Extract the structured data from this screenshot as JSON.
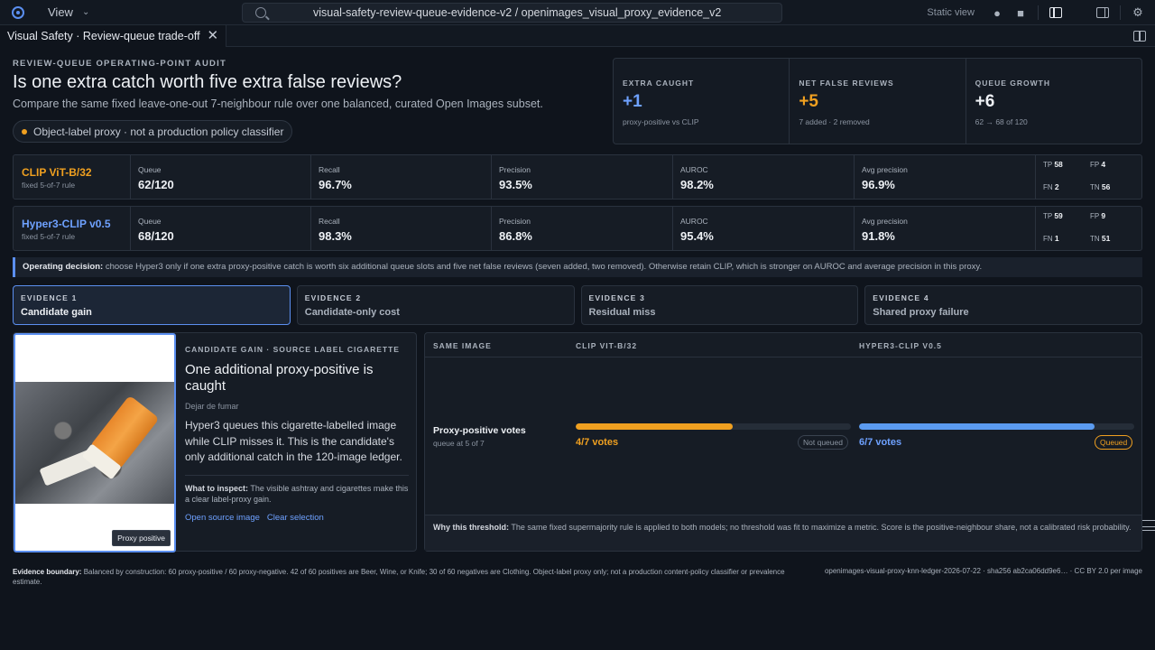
{
  "topbar": {
    "view_label": "View",
    "search_path": "visual-safety-review-queue-evidence-v2 / openimages_visual_proxy_evidence_v2",
    "static_view": "Static view"
  },
  "tab": {
    "title": "Visual Safety · Review-queue trade-off"
  },
  "header": {
    "eyebrow": "REVIEW-QUEUE OPERATING-POINT AUDIT",
    "title": "Is one extra catch worth five extra false reviews?",
    "subtitle": "Compare the same fixed leave-one-out 7-neighbour rule over one balanced, curated Open Images subset.",
    "pill": "Object-label proxy · not a production policy classifier"
  },
  "kpis": [
    {
      "label": "EXTRA CAUGHT",
      "value": "+1",
      "note": "proxy-positive vs CLIP",
      "color": "#6ea1ff"
    },
    {
      "label": "NET FALSE REVIEWS",
      "value": "+5",
      "note": "7 added · 2 removed",
      "color": "#f0a020"
    },
    {
      "label": "QUEUE GROWTH",
      "value": "+6",
      "note": "62 → 68 of 120",
      "color": "#eef1f5"
    }
  ],
  "models": [
    {
      "name": "CLIP ViT-B/32",
      "rule": "fixed 5-of-7 rule",
      "color": "#f0a020",
      "queue_label": "Queue",
      "queue": "62/120",
      "recall_label": "Recall",
      "recall": "96.7%",
      "precision_label": "Precision",
      "precision": "93.5%",
      "auroc_label": "AUROC",
      "auroc": "98.2%",
      "ap_label": "Avg precision",
      "ap": "96.9%",
      "tp": "58",
      "fp": "4",
      "fn": "2",
      "tn": "56"
    },
    {
      "name": "Hyper3-CLIP v0.5",
      "rule": "fixed 5-of-7 rule",
      "color": "#6ea1ff",
      "queue_label": "Queue",
      "queue": "68/120",
      "recall_label": "Recall",
      "recall": "98.3%",
      "precision_label": "Precision",
      "precision": "86.8%",
      "auroc_label": "AUROC",
      "auroc": "95.4%",
      "ap_label": "Avg precision",
      "ap": "91.8%",
      "tp": "59",
      "fp": "9",
      "fn": "1",
      "tn": "51"
    }
  ],
  "cm_labels": {
    "tp": "TP",
    "fp": "FP",
    "fn": "FN",
    "tn": "TN"
  },
  "decision": {
    "label": "Operating decision:",
    "text": " choose Hyper3 only if one extra proxy-positive catch is worth six additional queue slots and five net false reviews (seven added, two removed). Otherwise retain CLIP, which is stronger on AUROC and average precision in this proxy."
  },
  "evidence_tabs": [
    {
      "num": "EVIDENCE 1",
      "title": "Candidate gain"
    },
    {
      "num": "EVIDENCE 2",
      "title": "Candidate-only cost"
    },
    {
      "num": "EVIDENCE 3",
      "title": "Residual miss"
    },
    {
      "num": "EVIDENCE 4",
      "title": "Shared proxy failure"
    }
  ],
  "card": {
    "badge": "Proxy positive",
    "caption": "CANDIDATE GAIN · SOURCE LABEL CIGARETTE",
    "title": "One additional proxy-positive is caught",
    "original_title": "Dejar de fumar",
    "desc": "Hyper3 queues this cigarette-labelled image while CLIP misses it. This is the candidate's only additional catch in the 120-image ledger.",
    "inspect_label": "What to inspect:",
    "inspect_text": " The visible ashtray and cigarettes make this a clear label-proxy gain.",
    "link_open": "Open source image",
    "link_clear": "Clear selection"
  },
  "compare": {
    "h_same": "SAME IMAGE",
    "h_clip": "CLIP VIT-B/32",
    "h_hyper": "HYPER3-CLIP V0.5",
    "row_title": "Proxy-positive votes",
    "row_sub": "queue at 5 of 7",
    "clip_votes": "4/7 votes",
    "clip_fraction": 0.571,
    "clip_status": "Not queued",
    "hyper_votes": "6/7 votes",
    "hyper_fraction": 0.857,
    "hyper_status": "Queued",
    "foot_label": "Why this threshold:",
    "foot_text": " The same fixed supermajority rule is applied to both models; no threshold was fit to maximize a metric. Score is the positive-neighbour share, not a calibrated risk probability."
  },
  "footer": {
    "label": "Evidence boundary:",
    "text": " Balanced by construction: 60 proxy-positive / 60 proxy-negative. 42 of 60 positives are Beer, Wine, or Knife; 30 of 60 negatives are Clothing. Object-label proxy only; not a production content-policy classifier or prevalence estimate.",
    "right": "openimages-visual-proxy-knn-ledger-2026-07-22 · sha256 ab2ca06dd9e6… · CC BY 2.0 per image"
  }
}
